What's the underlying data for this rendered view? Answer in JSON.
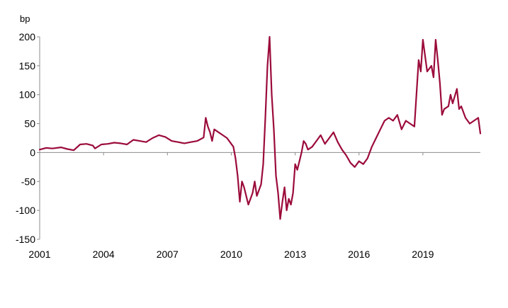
{
  "chart_data": {
    "type": "line",
    "ylabel": "bp",
    "ylim": [
      -150,
      200
    ],
    "yticks": [
      -150,
      -100,
      -50,
      0,
      50,
      100,
      150,
      200
    ],
    "xlim": [
      2001,
      2021.7
    ],
    "xticks": [
      "2001",
      "2004",
      "2007",
      "2010",
      "2013",
      "2016",
      "2019"
    ],
    "grid": false,
    "legend": "none",
    "colors": {
      "series": "#9b0b3a",
      "axis": "#8c8c8c",
      "text": "#000000"
    },
    "series": [
      {
        "x": [
          2001.0,
          2001.3,
          2001.6,
          2002.0,
          2002.3,
          2002.6,
          2002.9,
          2003.2,
          2003.5,
          2003.6,
          2003.9,
          2004.2,
          2004.5,
          2004.8,
          2005.1,
          2005.4,
          2005.7,
          2006.0,
          2006.3,
          2006.6,
          2006.9,
          2007.2,
          2007.5,
          2007.8,
          2008.1,
          2008.4,
          2008.7,
          2008.8,
          2008.9,
          2009.0,
          2009.1,
          2009.2,
          2009.4,
          2009.6,
          2009.8,
          2010.0,
          2010.1,
          2010.2,
          2010.3,
          2010.4,
          2010.5,
          2010.6,
          2010.8,
          2011.0,
          2011.1,
          2011.2,
          2011.4,
          2011.5,
          2011.6,
          2011.7,
          2011.8,
          2011.9,
          2012.0,
          2012.1,
          2012.2,
          2012.3,
          2012.4,
          2012.5,
          2012.6,
          2012.7,
          2012.8,
          2012.9,
          2013.0,
          2013.1,
          2013.2,
          2013.3,
          2013.4,
          2013.5,
          2013.6,
          2013.8,
          2014.0,
          2014.2,
          2014.4,
          2014.6,
          2014.8,
          2015.0,
          2015.2,
          2015.4,
          2015.6,
          2015.8,
          2016.0,
          2016.2,
          2016.4,
          2016.6,
          2016.8,
          2017.0,
          2017.2,
          2017.4,
          2017.6,
          2017.8,
          2018.0,
          2018.2,
          2018.4,
          2018.6,
          2018.8,
          2018.9,
          2019.0,
          2019.2,
          2019.4,
          2019.5,
          2019.6,
          2019.7,
          2019.8,
          2019.9,
          2020.0,
          2020.2,
          2020.3,
          2020.4,
          2020.6,
          2020.7,
          2020.8,
          2021.0,
          2021.2,
          2021.4,
          2021.6,
          2021.7
        ],
        "values": [
          5,
          8,
          7,
          9,
          6,
          4,
          14,
          15,
          12,
          7,
          14,
          15,
          17,
          16,
          14,
          22,
          20,
          18,
          25,
          30,
          27,
          20,
          18,
          16,
          18,
          20,
          26,
          60,
          45,
          35,
          20,
          40,
          35,
          30,
          25,
          15,
          10,
          -10,
          -40,
          -85,
          -50,
          -60,
          -90,
          -70,
          -50,
          -75,
          -55,
          -20,
          60,
          150,
          200,
          100,
          40,
          -40,
          -70,
          -115,
          -85,
          -60,
          -100,
          -80,
          -90,
          -70,
          -20,
          -30,
          -15,
          0,
          20,
          15,
          5,
          10,
          20,
          30,
          15,
          25,
          35,
          18,
          5,
          -5,
          -18,
          -25,
          -15,
          -20,
          -10,
          10,
          25,
          40,
          55,
          60,
          55,
          65,
          40,
          55,
          50,
          45,
          160,
          140,
          195,
          140,
          150,
          130,
          195,
          160,
          120,
          65,
          75,
          80,
          100,
          85,
          110,
          75,
          80,
          60,
          50,
          55,
          60,
          33
        ]
      }
    ]
  }
}
